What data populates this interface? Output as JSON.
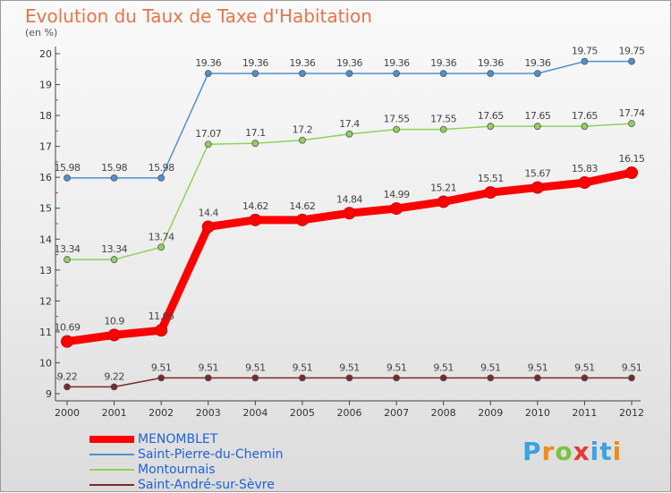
{
  "chart_data": {
    "type": "line",
    "title": "Evolution du Taux de Taxe d'Habitation",
    "subtitle": "(en %)",
    "xlabel": "",
    "ylabel": "",
    "ylim": [
      9,
      20
    ],
    "yticks": [
      "9",
      "10",
      "11",
      "12",
      "13",
      "14",
      "15",
      "16",
      "17",
      "18",
      "19",
      "20"
    ],
    "grid": false,
    "legend_position": "bottom-left",
    "categories": [
      "2000",
      "2001",
      "2002",
      "2003",
      "2004",
      "2005",
      "2006",
      "2007",
      "2008",
      "2009",
      "2010",
      "2011",
      "2012"
    ],
    "series": [
      {
        "name": "MENOMBLET",
        "color": "#ff0000",
        "values": [
          10.69,
          10.9,
          11.05,
          14.4,
          14.62,
          14.62,
          14.84,
          14.99,
          15.21,
          15.51,
          15.67,
          15.83,
          16.15
        ],
        "labels": [
          "10.69",
          "10.9",
          "11.05",
          "14.4",
          "14.62",
          "14.62",
          "14.84",
          "14.99",
          "15.21",
          "15.51",
          "15.67",
          "15.83",
          "16.15"
        ]
      },
      {
        "name": "Saint-Pierre-du-Chemin",
        "color": "#4f8fcf",
        "values": [
          15.98,
          15.98,
          15.98,
          19.36,
          19.36,
          19.36,
          19.36,
          19.36,
          19.36,
          19.36,
          19.36,
          19.75,
          19.75
        ],
        "labels": [
          "15.98",
          "15.98",
          "15.98",
          "19.36",
          "19.36",
          "19.36",
          "19.36",
          "19.36",
          "19.36",
          "19.36",
          "19.36",
          "19.75",
          "19.75"
        ]
      },
      {
        "name": "Montournais",
        "color": "#8fd25a",
        "values": [
          13.34,
          13.34,
          13.74,
          17.07,
          17.1,
          17.2,
          17.4,
          17.55,
          17.55,
          17.65,
          17.65,
          17.65,
          17.74
        ],
        "labels": [
          "13.34",
          "13.34",
          "13.74",
          "17.07",
          "17.1",
          "17.2",
          "17.4",
          "17.55",
          "17.55",
          "17.65",
          "17.65",
          "17.65",
          "17.74"
        ]
      },
      {
        "name": "Saint-André-sur-Sèvre",
        "color": "#7a2a2a",
        "values": [
          9.22,
          9.22,
          9.51,
          9.51,
          9.51,
          9.51,
          9.51,
          9.51,
          9.51,
          9.51,
          9.51,
          9.51,
          9.51
        ],
        "labels": [
          "9.22",
          "9.22",
          "9.51",
          "9.51",
          "9.51",
          "9.51",
          "9.51",
          "9.51",
          "9.51",
          "9.51",
          "9.51",
          "9.51",
          "9.51"
        ]
      }
    ]
  },
  "legend": {
    "items": [
      "MENOMBLET",
      "Saint-Pierre-du-Chemin",
      "Montournais",
      "Saint-André-sur-Sèvre"
    ]
  },
  "logo": {
    "text": "Proxiti"
  }
}
